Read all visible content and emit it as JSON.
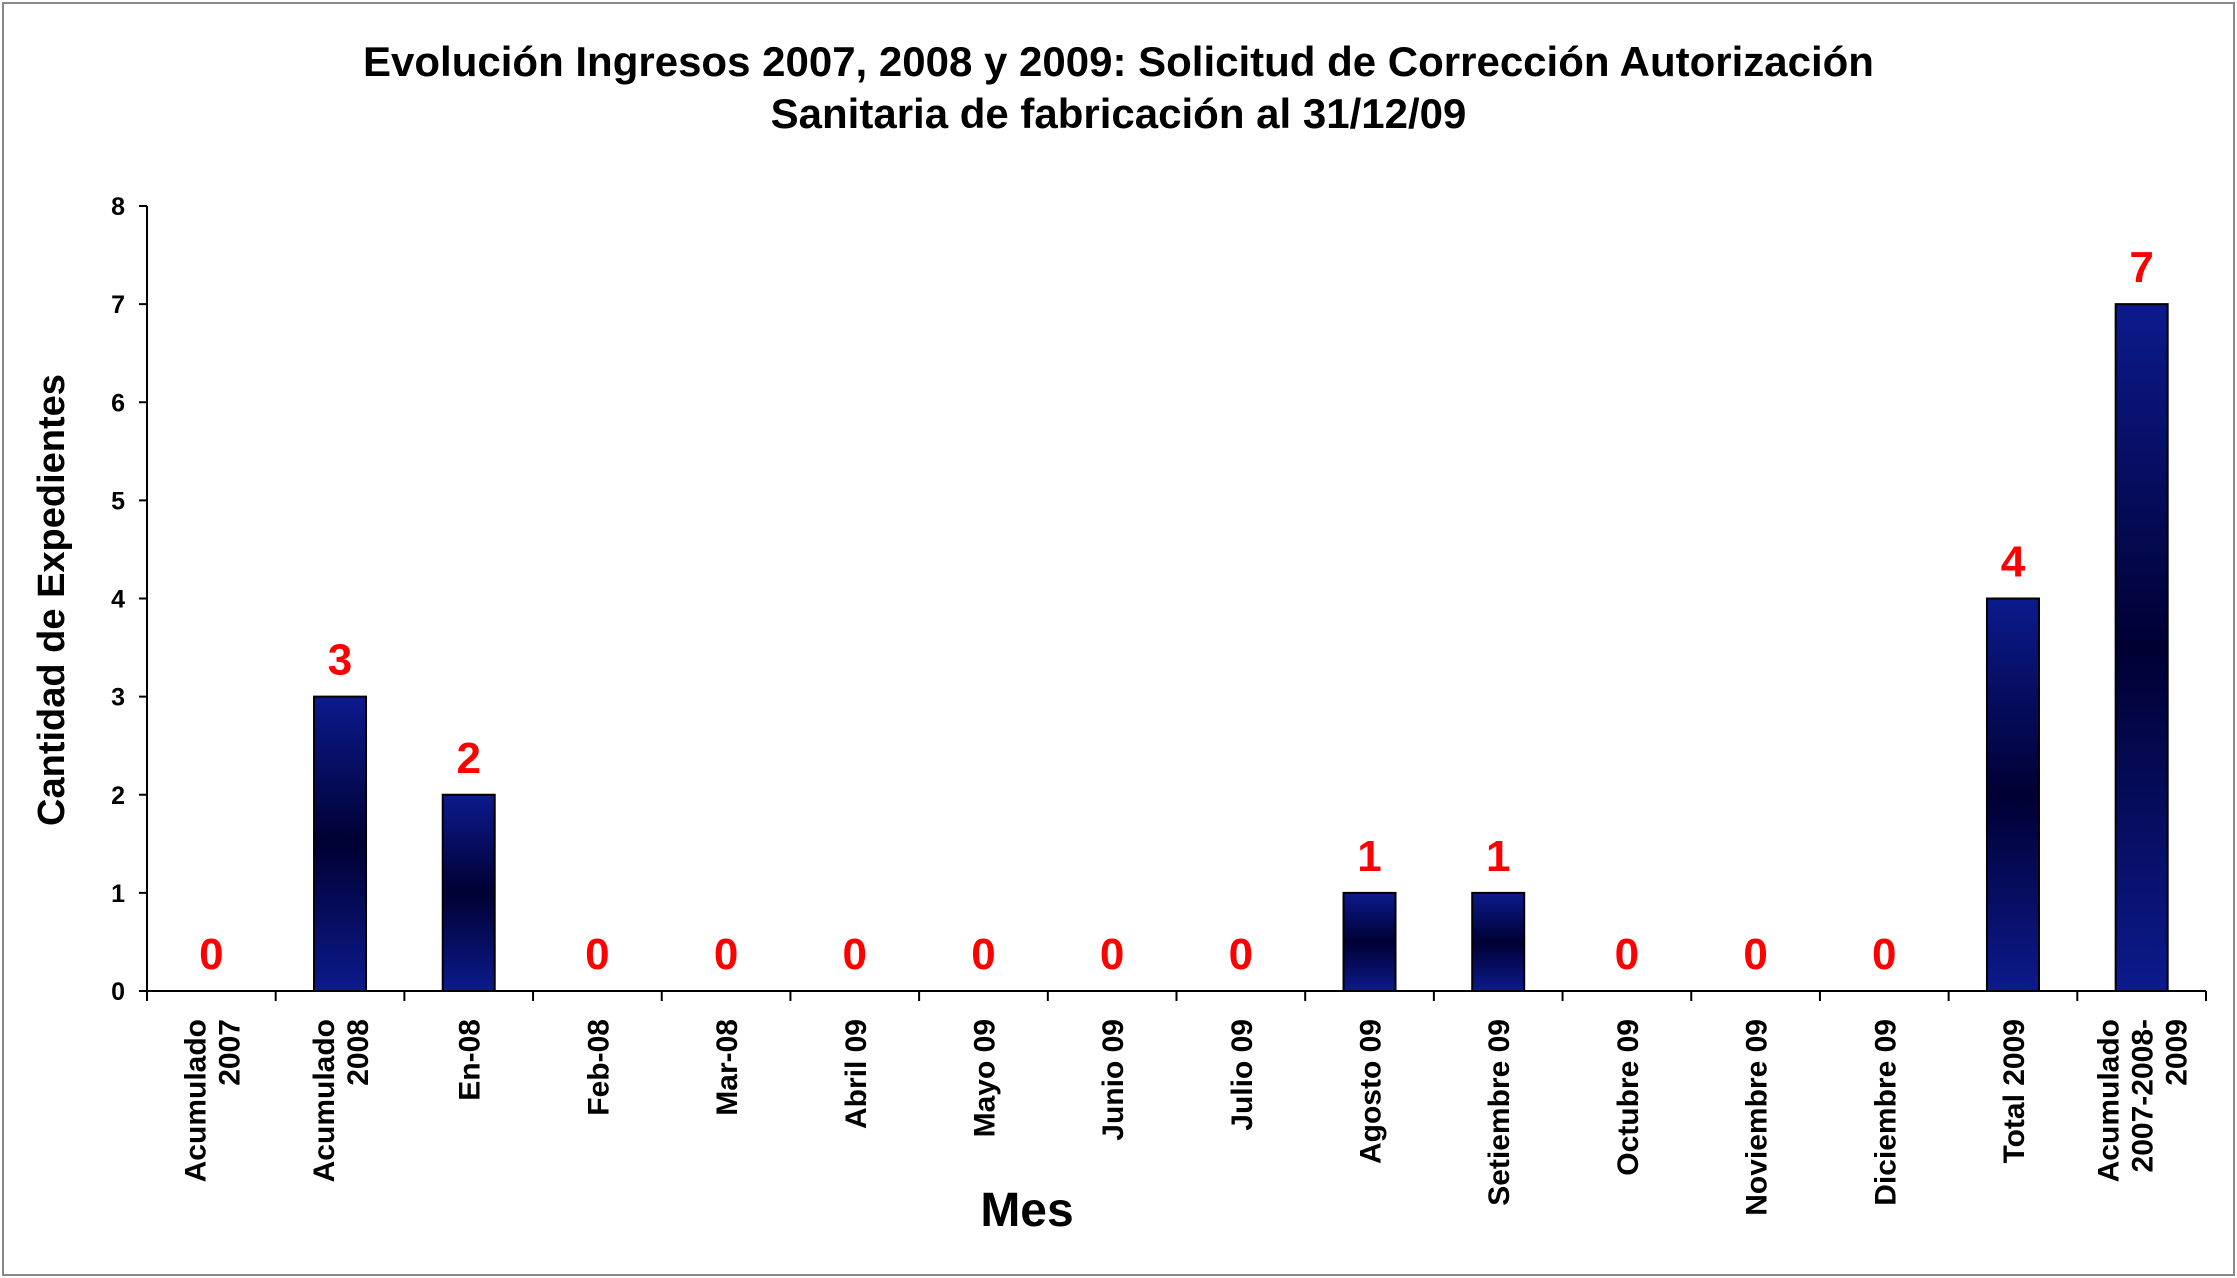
{
  "chart_data": {
    "type": "bar",
    "title": "Evolución Ingresos 2007, 2008 y 2009: Solicitud de Corrección Autorización",
    "subtitle": "Sanitaria de fabricación  al 31/12/09",
    "xlabel": "Mes",
    "ylabel": "Cantidad de Expedientes",
    "categories": [
      "Acumulado 2007",
      "Acumulado 2008",
      "En-08",
      "Feb-08",
      "Mar-08",
      "Abril 09",
      "Mayo 09",
      "Junio 09",
      "Julio 09",
      "Agosto 09",
      "Setiembre 09",
      "Octubre 09",
      "Noviembre 09",
      "Diciembre 09",
      "Total 2009",
      "Acumulado 2007-2008- 2009"
    ],
    "category_lines": [
      [
        "Acumulado",
        "2007"
      ],
      [
        "Acumulado",
        "2008"
      ],
      [
        "En-08"
      ],
      [
        "Feb-08"
      ],
      [
        "Mar-08"
      ],
      [
        "Abril 09"
      ],
      [
        "Mayo 09"
      ],
      [
        "Junio 09"
      ],
      [
        "Julio 09"
      ],
      [
        "Agosto 09"
      ],
      [
        "Setiembre 09"
      ],
      [
        "Octubre 09"
      ],
      [
        "Noviembre 09"
      ],
      [
        "Diciembre 09"
      ],
      [
        "Total 2009"
      ],
      [
        "Acumulado",
        "2007-2008-",
        "2009"
      ]
    ],
    "values": [
      0,
      3,
      2,
      0,
      0,
      0,
      0,
      0,
      0,
      1,
      1,
      0,
      0,
      0,
      4,
      7
    ],
    "data_labels": [
      "0",
      "3",
      "2",
      "0",
      "0",
      "0",
      "0",
      "0",
      "0",
      "1",
      "1",
      "0",
      "0",
      "0",
      "4",
      "7"
    ],
    "ylim": [
      0,
      8
    ],
    "yticks": [
      0,
      1,
      2,
      3,
      4,
      5,
      6,
      7,
      8
    ],
    "grid": false,
    "legend": "none",
    "colors": {
      "bar_edge": "#0a0a60",
      "bar_mid": "#000033",
      "bar_outer": "#0c1a8c",
      "data_label": "#ff0000",
      "axis": "#000000"
    }
  }
}
